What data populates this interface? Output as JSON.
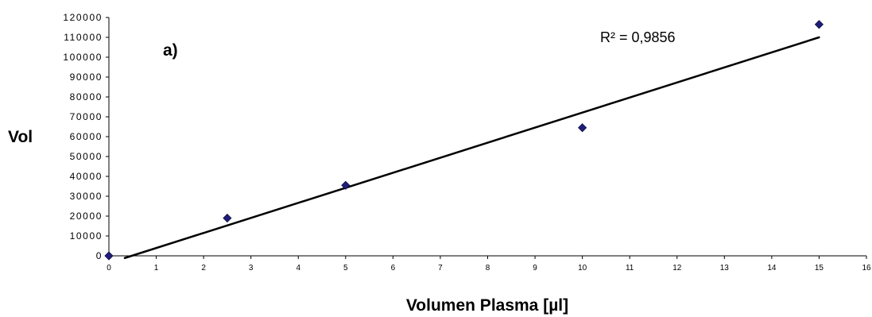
{
  "chart_data": {
    "type": "scatter",
    "title": "",
    "panel_label": "a)",
    "xlabel": "Volumen Plasma [µl]",
    "ylabel": "Vol",
    "xlim": [
      0,
      16
    ],
    "ylim": [
      0,
      120000
    ],
    "x_ticks": [
      0,
      1,
      2,
      3,
      4,
      5,
      6,
      7,
      8,
      9,
      10,
      11,
      12,
      13,
      14,
      15,
      16
    ],
    "y_ticks": [
      0,
      10000,
      20000,
      30000,
      40000,
      50000,
      60000,
      70000,
      80000,
      90000,
      100000,
      110000,
      120000
    ],
    "grid": false,
    "legend": "none",
    "series": [
      {
        "points": [
          {
            "x": 0,
            "y": 0
          },
          {
            "x": 2.5,
            "y": 19000
          },
          {
            "x": 5,
            "y": 35500
          },
          {
            "x": 10,
            "y": 64500
          },
          {
            "x": 15,
            "y": 116500
          }
        ],
        "marker": "diamond",
        "color": "#1f1f7a"
      }
    ],
    "trendline": {
      "type": "linear",
      "x_range": [
        0,
        15
      ],
      "y_at_start": -1500,
      "y_at_end": 110000,
      "color": "#000000",
      "annotation": "R² = 0,9856"
    }
  }
}
